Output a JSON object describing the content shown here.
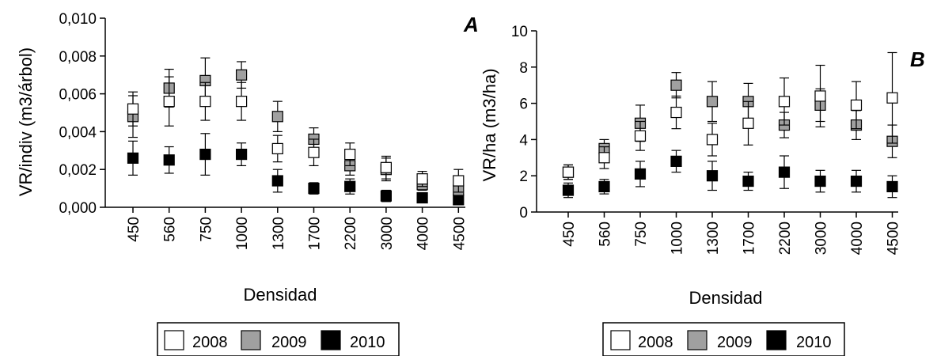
{
  "colors": {
    "2008": "#ffffff",
    "2009": "#a0a0a0",
    "2010": "#000000",
    "stroke": "#000000"
  },
  "chart_data": [
    {
      "type": "scatter",
      "panel_label": "A",
      "title": "",
      "xlabel": "Densidad",
      "ylabel": "VR/indiv (m3/árbol)",
      "categories": [
        "450",
        "560",
        "750",
        "1000",
        "1300",
        "1700",
        "2200",
        "3000",
        "4000",
        "4500"
      ],
      "ylim": [
        0,
        0.01
      ],
      "y_ticks": [
        "0,000",
        "0,002",
        "0,004",
        "0,006",
        "0,008",
        "0,010"
      ],
      "y_tick_values": [
        0,
        0.002,
        0.004,
        0.006,
        0.008,
        0.01
      ],
      "legend_position": "bottom",
      "series": [
        {
          "name": "2008",
          "values": [
            0.0052,
            0.0056,
            0.0056,
            0.0056,
            0.0031,
            0.0029,
            0.0028,
            0.0021,
            0.0015,
            0.0014
          ],
          "error": [
            0.0009,
            0.0013,
            0.001,
            0.001,
            0.0007,
            0.0007,
            0.0006,
            0.0006,
            0.0004,
            0.0006
          ]
        },
        {
          "name": "2009",
          "values": [
            0.0048,
            0.0063,
            0.0067,
            0.007,
            0.0048,
            0.0036,
            0.0022,
            0.002,
            0.0012,
            0.0009
          ],
          "error": [
            0.0011,
            0.001,
            0.0012,
            0.0007,
            0.0008,
            0.0006,
            0.0005,
            0.0006,
            0.0003,
            0.0004
          ]
        },
        {
          "name": "2010",
          "values": [
            0.0026,
            0.0025,
            0.0028,
            0.0028,
            0.0014,
            0.001,
            0.0011,
            0.0006,
            0.0005,
            0.0004
          ],
          "error": [
            0.0009,
            0.0007,
            0.0011,
            0.0006,
            0.0006,
            0.0003,
            0.0004,
            0.0003,
            0.0002,
            0.0002
          ]
        }
      ]
    },
    {
      "type": "scatter",
      "panel_label": "B",
      "title": "",
      "xlabel": "Densidad",
      "ylabel": "VR/ha (m3/ha)",
      "categories": [
        "450",
        "560",
        "750",
        "1000",
        "1300",
        "1700",
        "2200",
        "3000",
        "4000",
        "4500"
      ],
      "ylim": [
        0,
        10
      ],
      "y_ticks": [
        "0",
        "2",
        "4",
        "6",
        "8",
        "10"
      ],
      "y_tick_values": [
        0,
        2,
        4,
        6,
        8,
        10
      ],
      "legend_position": "bottom",
      "series": [
        {
          "name": "2008",
          "values": [
            2.2,
            3.0,
            4.2,
            5.5,
            4.0,
            4.9,
            6.1,
            6.4,
            5.9,
            6.3
          ],
          "error": [
            0.4,
            0.6,
            0.8,
            0.9,
            0.9,
            1.2,
            1.3,
            1.7,
            1.3,
            2.5
          ]
        },
        {
          "name": "2009",
          "values": [
            2.2,
            3.5,
            4.9,
            7.0,
            6.1,
            6.1,
            4.8,
            5.9,
            4.8,
            3.9
          ],
          "error": [
            0.4,
            0.5,
            1.0,
            0.7,
            1.1,
            1.0,
            0.7,
            0.9,
            0.8,
            0.9
          ]
        },
        {
          "name": "2010",
          "values": [
            1.2,
            1.4,
            2.1,
            2.8,
            2.0,
            1.7,
            2.2,
            1.7,
            1.7,
            1.4
          ],
          "error": [
            0.4,
            0.4,
            0.7,
            0.6,
            0.8,
            0.5,
            0.9,
            0.6,
            0.6,
            0.6
          ]
        }
      ]
    }
  ]
}
